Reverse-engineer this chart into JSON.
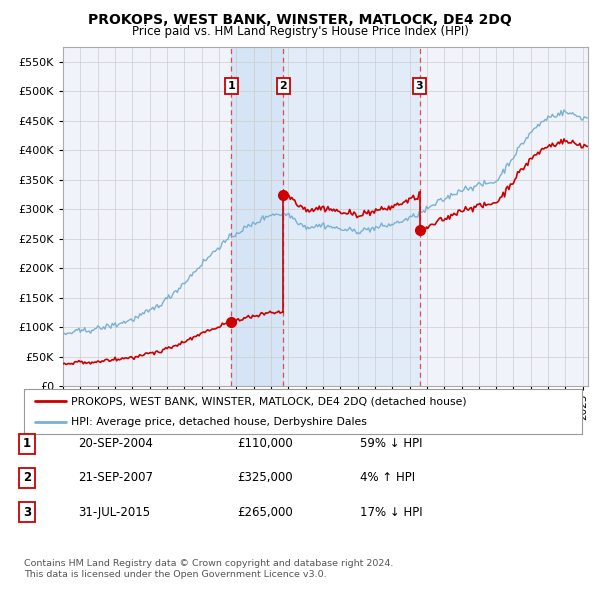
{
  "title": "PROKOPS, WEST BANK, WINSTER, MATLOCK, DE4 2DQ",
  "subtitle": "Price paid vs. HM Land Registry's House Price Index (HPI)",
  "hpi_color": "#7ab0d4",
  "price_color": "#cc0000",
  "shade_color": "#ddeeff",
  "plot_bg": "#ffffff",
  "fig_bg": "#ffffff",
  "ylim": [
    0,
    575000
  ],
  "xlim": [
    1995,
    2025.3
  ],
  "yticks": [
    0,
    50000,
    100000,
    150000,
    200000,
    250000,
    300000,
    350000,
    400000,
    450000,
    500000,
    550000
  ],
  "transactions": [
    {
      "id": 1,
      "date": "20-SEP-2004",
      "price": 110000,
      "hpi_rel": "59% ↓ HPI",
      "x_year": 2004.72
    },
    {
      "id": 2,
      "date": "21-SEP-2007",
      "price": 325000,
      "hpi_rel": "4% ↑ HPI",
      "x_year": 2007.72
    },
    {
      "id": 3,
      "date": "31-JUL-2015",
      "price": 265000,
      "hpi_rel": "17% ↓ HPI",
      "x_year": 2015.58
    }
  ],
  "legend_line1": "PROKOPS, WEST BANK, WINSTER, MATLOCK, DE4 2DQ (detached house)",
  "legend_line2": "HPI: Average price, detached house, Derbyshire Dales",
  "footer1": "Contains HM Land Registry data © Crown copyright and database right 2024.",
  "footer2": "This data is licensed under the Open Government Licence v3.0.",
  "hpi_base_years": [
    1995,
    1996,
    1997,
    1998,
    1999,
    2000,
    2001,
    2002,
    2003,
    2004,
    2005,
    2006,
    2007,
    2008,
    2009,
    2010,
    2011,
    2012,
    2013,
    2014,
    2015,
    2016,
    2017,
    2018,
    2019,
    2020,
    2021,
    2022,
    2023,
    2024,
    2025
  ],
  "hpi_base_vals": [
    88000,
    93000,
    99000,
    106000,
    116000,
    130000,
    150000,
    178000,
    210000,
    240000,
    262000,
    278000,
    295000,
    295000,
    272000,
    275000,
    268000,
    265000,
    268000,
    275000,
    285000,
    300000,
    318000,
    335000,
    342000,
    348000,
    390000,
    430000,
    455000,
    465000,
    455000
  ]
}
